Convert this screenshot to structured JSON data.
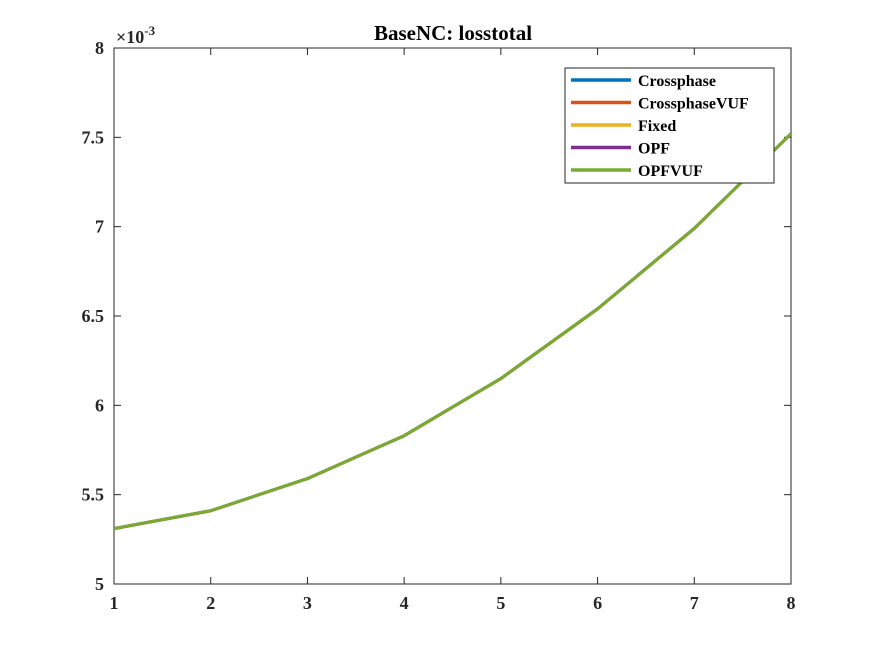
{
  "chart_data": {
    "type": "line",
    "title": "BaseNC: losstotal",
    "xlabel": "",
    "ylabel": "",
    "xlim": [
      1,
      8
    ],
    "ylim": [
      0.005,
      0.008
    ],
    "x_ticks": [
      "1",
      "2",
      "3",
      "4",
      "5",
      "6",
      "7",
      "8"
    ],
    "y_ticks": [
      "5",
      "5.5",
      "6",
      "6.5",
      "7",
      "7.5",
      "8"
    ],
    "y_exponent": {
      "base": "×10",
      "power": "-3"
    },
    "x": [
      1,
      2,
      3,
      4,
      5,
      6,
      7,
      8
    ],
    "series": [
      {
        "name": "Crossphase",
        "color": "#0072BD",
        "values": [
          0.00531,
          0.00541,
          0.00559,
          0.00583,
          0.00615,
          0.00654,
          0.00699,
          0.00752
        ]
      },
      {
        "name": "CrossphaseVUF",
        "color": "#D95319",
        "values": [
          0.00531,
          0.00541,
          0.00559,
          0.00583,
          0.00615,
          0.00654,
          0.00699,
          0.00752
        ]
      },
      {
        "name": "Fixed",
        "color": "#EDB120",
        "values": [
          0.00531,
          0.00541,
          0.00559,
          0.00583,
          0.00615,
          0.00654,
          0.00699,
          0.00752
        ]
      },
      {
        "name": "OPF",
        "color": "#7E2F8E",
        "values": [
          0.00531,
          0.00541,
          0.00559,
          0.00583,
          0.00615,
          0.00654,
          0.00699,
          0.00752
        ]
      },
      {
        "name": "OPFVUF",
        "color": "#77AC30",
        "values": [
          0.00531,
          0.00541,
          0.00559,
          0.00583,
          0.00615,
          0.00654,
          0.00699,
          0.00752
        ]
      }
    ],
    "grid": false,
    "legend_position": "top-right"
  }
}
